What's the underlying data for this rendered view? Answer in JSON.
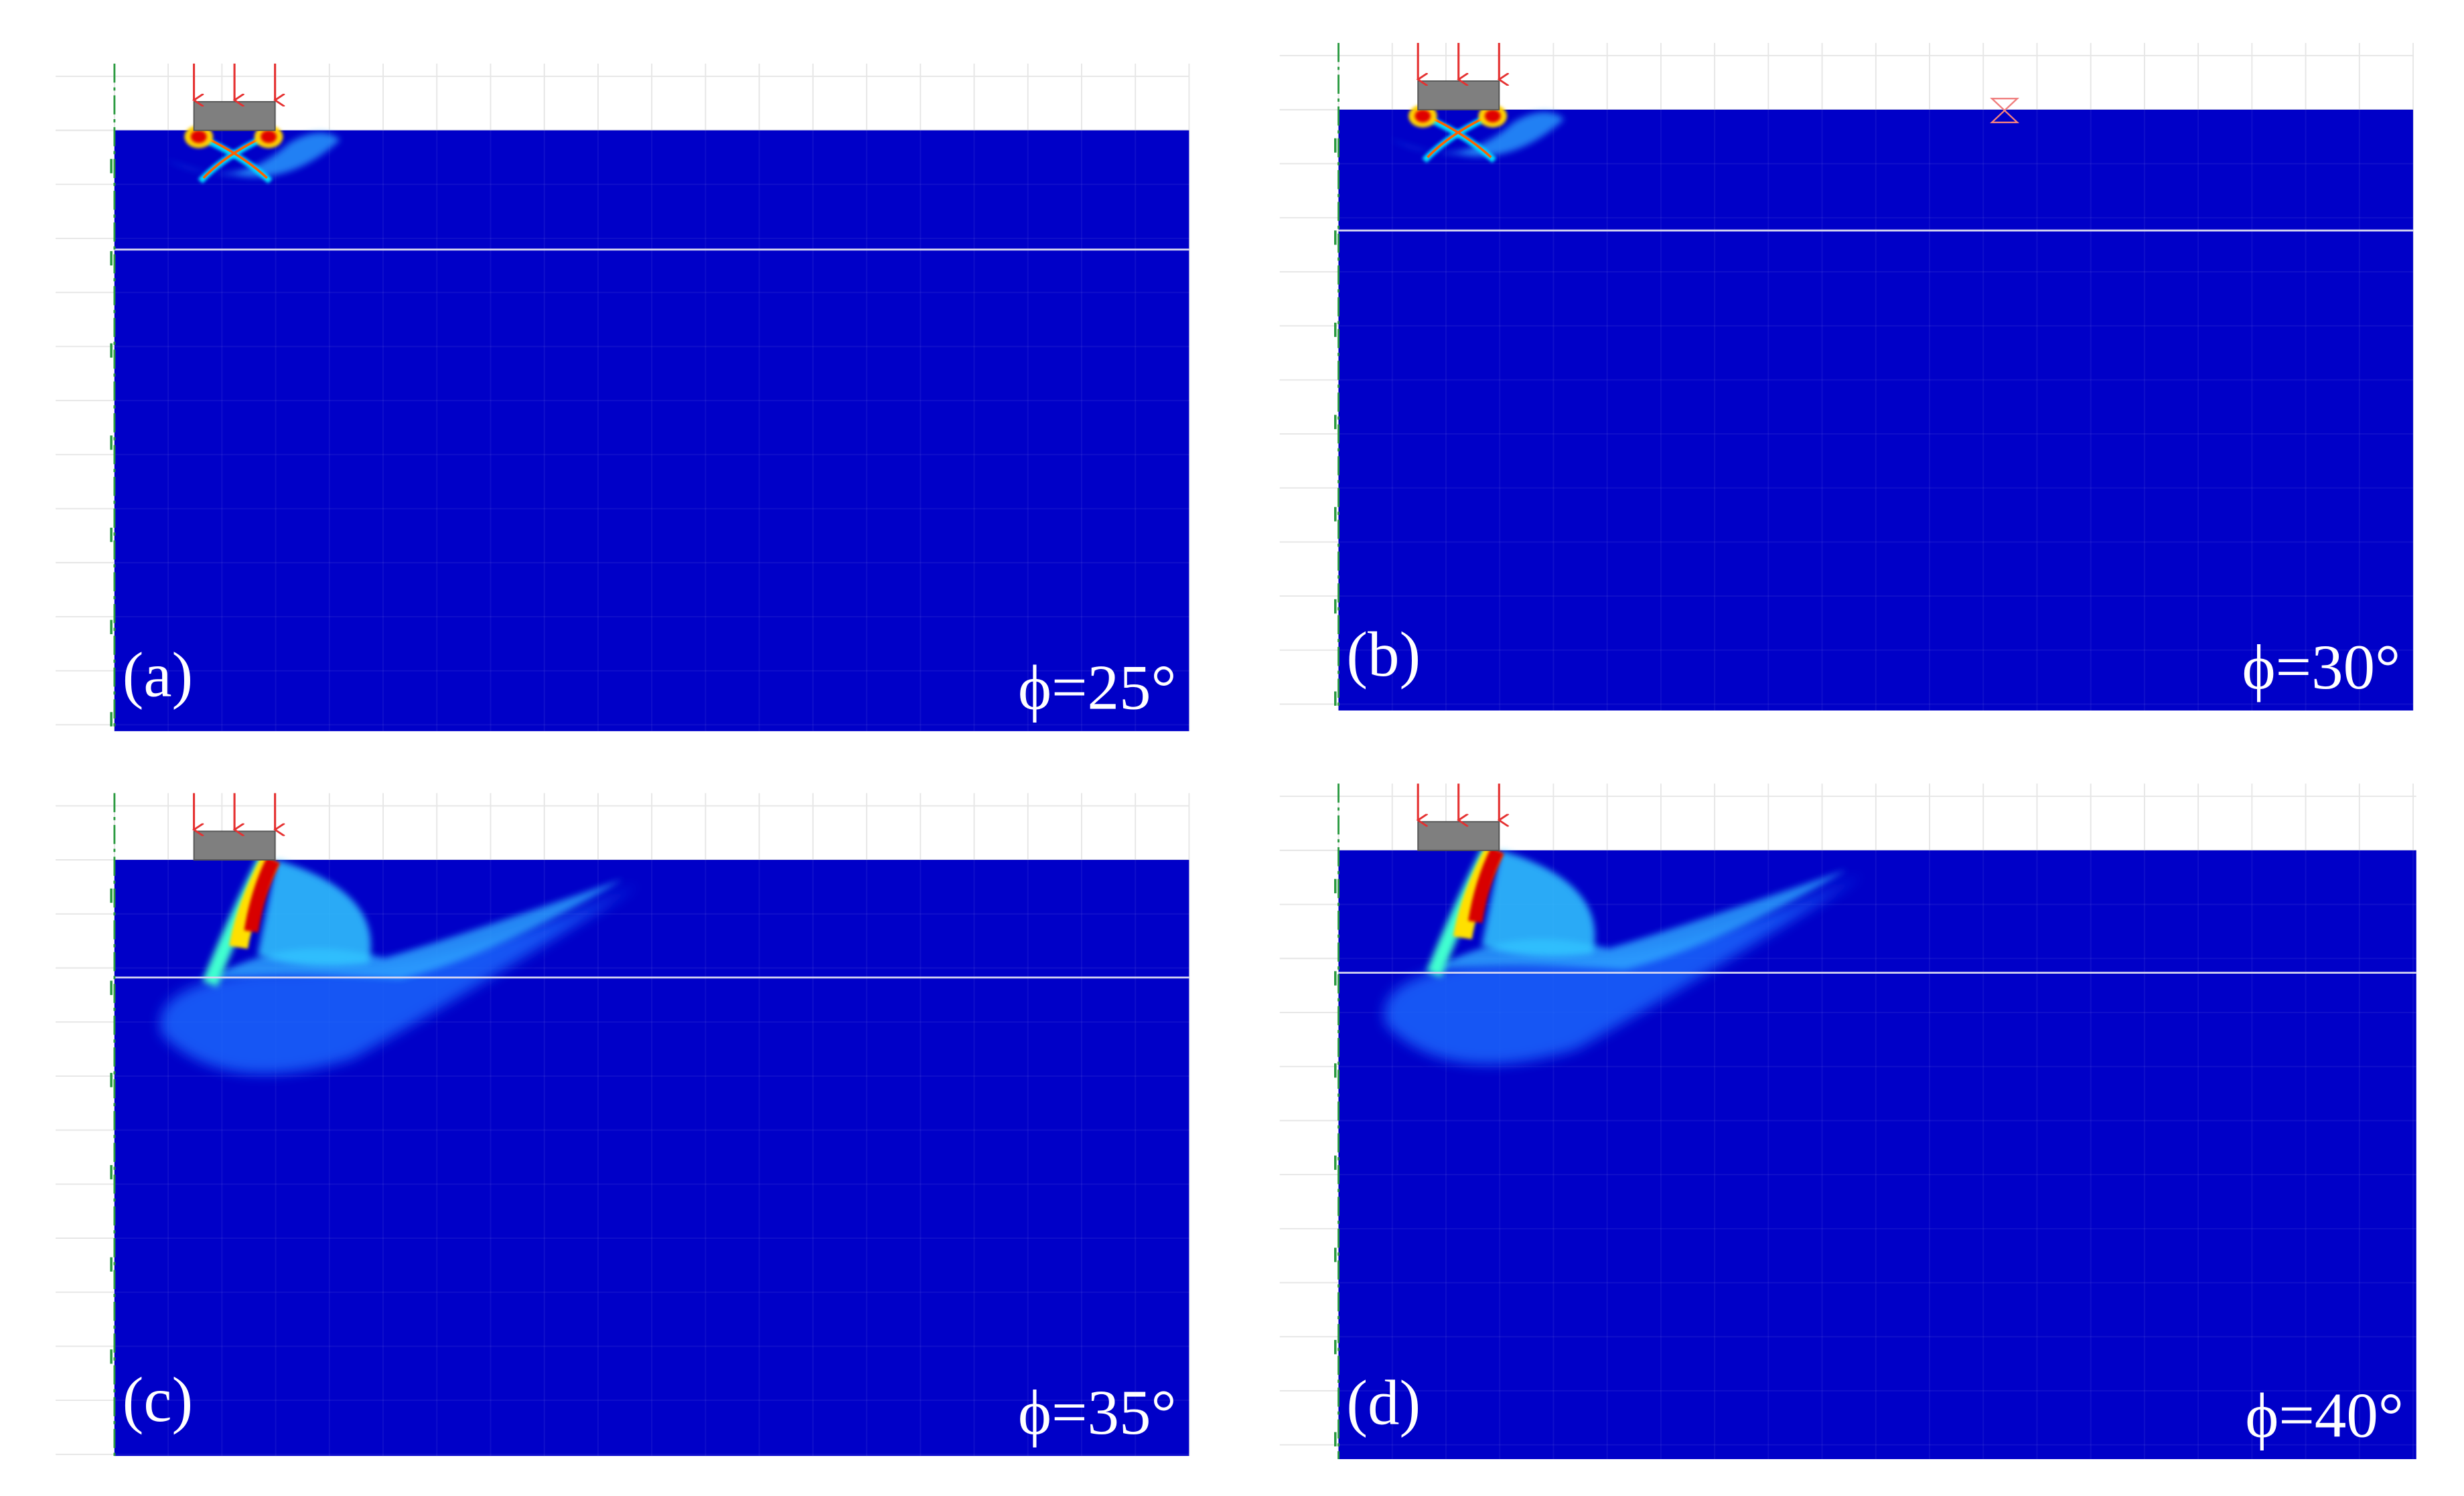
{
  "panels": [
    {
      "label": "(a)",
      "angle": "ϕ=25°"
    },
    {
      "label": "(b)",
      "angle": "ϕ=30°"
    },
    {
      "label": "(c)",
      "angle": "ϕ=35°"
    },
    {
      "label": "(d)",
      "angle": "ϕ=40°"
    }
  ]
}
